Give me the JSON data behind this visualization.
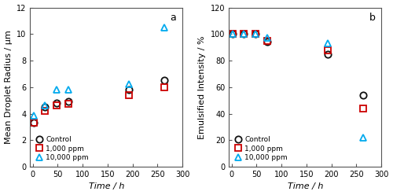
{
  "panel_a": {
    "label": "a",
    "xlabel": "Time / h",
    "ylabel": "Mean Droplet Radius / μm",
    "xlim": [
      -5,
      300
    ],
    "ylim": [
      0,
      12
    ],
    "yticks": [
      0,
      2,
      4,
      6,
      8,
      10,
      12
    ],
    "xticks": [
      0,
      50,
      100,
      150,
      200,
      250,
      300
    ],
    "series": [
      {
        "label": "Control",
        "color": "#111111",
        "marker": "o",
        "fillstyle": "none",
        "x": [
          2,
          24,
          48,
          72,
          192,
          264
        ],
        "y": [
          3.3,
          4.5,
          4.8,
          4.9,
          5.8,
          6.5
        ]
      },
      {
        "label": "1,000 ppm",
        "color": "#cc0000",
        "marker": "s",
        "fillstyle": "none",
        "x": [
          2,
          24,
          48,
          72,
          192,
          264
        ],
        "y": [
          3.3,
          4.2,
          4.6,
          4.75,
          5.4,
          6.0
        ]
      },
      {
        "label": "10,000 ppm",
        "color": "#00aaee",
        "marker": "^",
        "fillstyle": "none",
        "x": [
          2,
          24,
          48,
          72,
          192,
          264
        ],
        "y": [
          3.85,
          4.6,
          5.8,
          5.8,
          6.2,
          10.5
        ]
      }
    ]
  },
  "panel_b": {
    "label": "b",
    "xlabel": "Time / h",
    "ylabel": "Emulsified Intensity / %",
    "xlim": [
      -5,
      300
    ],
    "ylim": [
      0,
      120
    ],
    "yticks": [
      0,
      20,
      40,
      60,
      80,
      100,
      120
    ],
    "xticks": [
      0,
      50,
      100,
      150,
      200,
      250,
      300
    ],
    "series": [
      {
        "label": "Control",
        "color": "#111111",
        "marker": "o",
        "fillstyle": "none",
        "x": [
          2,
          24,
          48,
          72,
          192,
          264
        ],
        "y": [
          100,
          100,
          100,
          94,
          85,
          54
        ]
      },
      {
        "label": "1,000 ppm",
        "color": "#cc0000",
        "marker": "s",
        "fillstyle": "none",
        "x": [
          2,
          24,
          48,
          72,
          192,
          264
        ],
        "y": [
          100,
          100,
          100,
          95,
          88,
          44
        ]
      },
      {
        "label": "10,000 ppm",
        "color": "#00aaee",
        "marker": "^",
        "fillstyle": "none",
        "x": [
          2,
          24,
          48,
          72,
          192,
          264
        ],
        "y": [
          100,
          100,
          100,
          97,
          93,
          22
        ]
      }
    ]
  },
  "figure_bg": "#ffffff",
  "axes_bg": "#ffffff",
  "markersize": 6,
  "markeredgewidth": 1.3,
  "legend_fontsize": 6.5,
  "tick_fontsize": 7,
  "label_fontsize": 8,
  "spine_color": "#555555",
  "spine_linewidth": 0.8,
  "panel_label_fontsize": 9
}
